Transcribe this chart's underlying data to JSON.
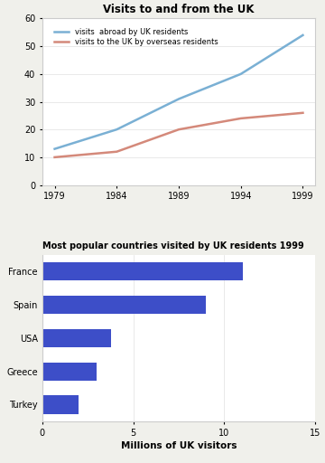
{
  "line_title": "Visits to and from the UK",
  "line_years": [
    1979,
    1984,
    1989,
    1994,
    1999
  ],
  "line_abroad": [
    13,
    20,
    31,
    40,
    54
  ],
  "line_overseas": [
    10,
    12,
    20,
    24,
    26
  ],
  "line_abroad_label": "visits  abroad by UK residents",
  "line_overseas_label": "visits to the UK by overseas residents",
  "line_abroad_color": "#7ab0d4",
  "line_overseas_color": "#d4897a",
  "line_ylim": [
    0,
    60
  ],
  "line_yticks": [
    0,
    10,
    20,
    30,
    40,
    50,
    60
  ],
  "line_xticks": [
    1979,
    1984,
    1989,
    1994,
    1999
  ],
  "bar_title": "Most popular countries visited by UK residents 1999",
  "bar_countries": [
    "France",
    "Spain",
    "USA",
    "Greece",
    "Turkey"
  ],
  "bar_values": [
    11.0,
    9.0,
    3.8,
    3.0,
    2.0
  ],
  "bar_color": "#3d4ec8",
  "bar_xlim": [
    0,
    15
  ],
  "bar_xticks": [
    0,
    5,
    10,
    15
  ],
  "bar_xlabel": "Millions of UK visitors",
  "bg_color": "#f0f0eb",
  "plot_bg_color": "#ffffff",
  "border_color": "#cccccc"
}
